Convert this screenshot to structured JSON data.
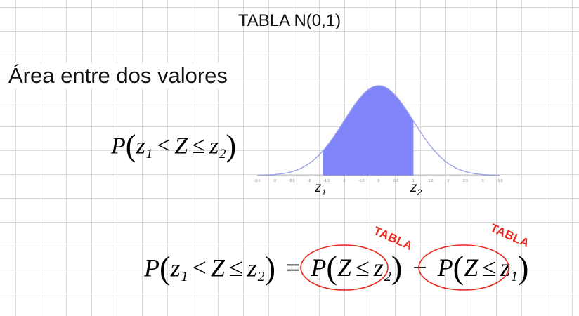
{
  "title": "TABLA N(0,1)",
  "subtitle": "Área entre dos valores",
  "formula_top": {
    "P": "P",
    "open": "(",
    "z1": "z",
    "z1_sub": "1",
    "lt": "<",
    "Z": "Z",
    "le": "≤",
    "z2": "z",
    "z2_sub": "2",
    "close": ")"
  },
  "formula_bottom": {
    "lhs": {
      "P": "P",
      "open": "(",
      "z1": "z",
      "z1_sub": "1",
      "lt": "<",
      "Z": "Z",
      "le": "≤",
      "z2": "z",
      "z2_sub": "2",
      "close": ")"
    },
    "eq": "=",
    "term1": {
      "P": "P",
      "open": "(",
      "Z": "Z",
      "le": "≤",
      "z": "z",
      "z_sub": "2",
      "close": ")"
    },
    "minus": "−",
    "term2": {
      "P": "P",
      "open": "(",
      "Z": "Z",
      "le": "≤",
      "z": "z",
      "z_sub": "1",
      "close": ")"
    }
  },
  "annotations": {
    "tabla_1": "TABLA",
    "tabla_2": "TABLA"
  },
  "chart_labels": {
    "z1": "z",
    "z1_sub": "1",
    "z2": "z",
    "z2_sub": "2"
  },
  "colors": {
    "fill": "#7f85f8",
    "curve": "#9aa3e8",
    "annotation": "#e8291e"
  },
  "chart_data": {
    "type": "area",
    "distribution": "standard normal N(0,1)",
    "shaded_from": -1.6,
    "shaded_to": 1.0,
    "x_range": [
      -3.5,
      3.5
    ],
    "ticks": [
      "-3.5",
      "-3",
      "-2.5",
      "-2",
      "-1.5",
      "-1",
      "-0.5",
      "0",
      "0.5",
      "1",
      "1.5",
      "2",
      "2.5",
      "3",
      "3.5"
    ]
  }
}
